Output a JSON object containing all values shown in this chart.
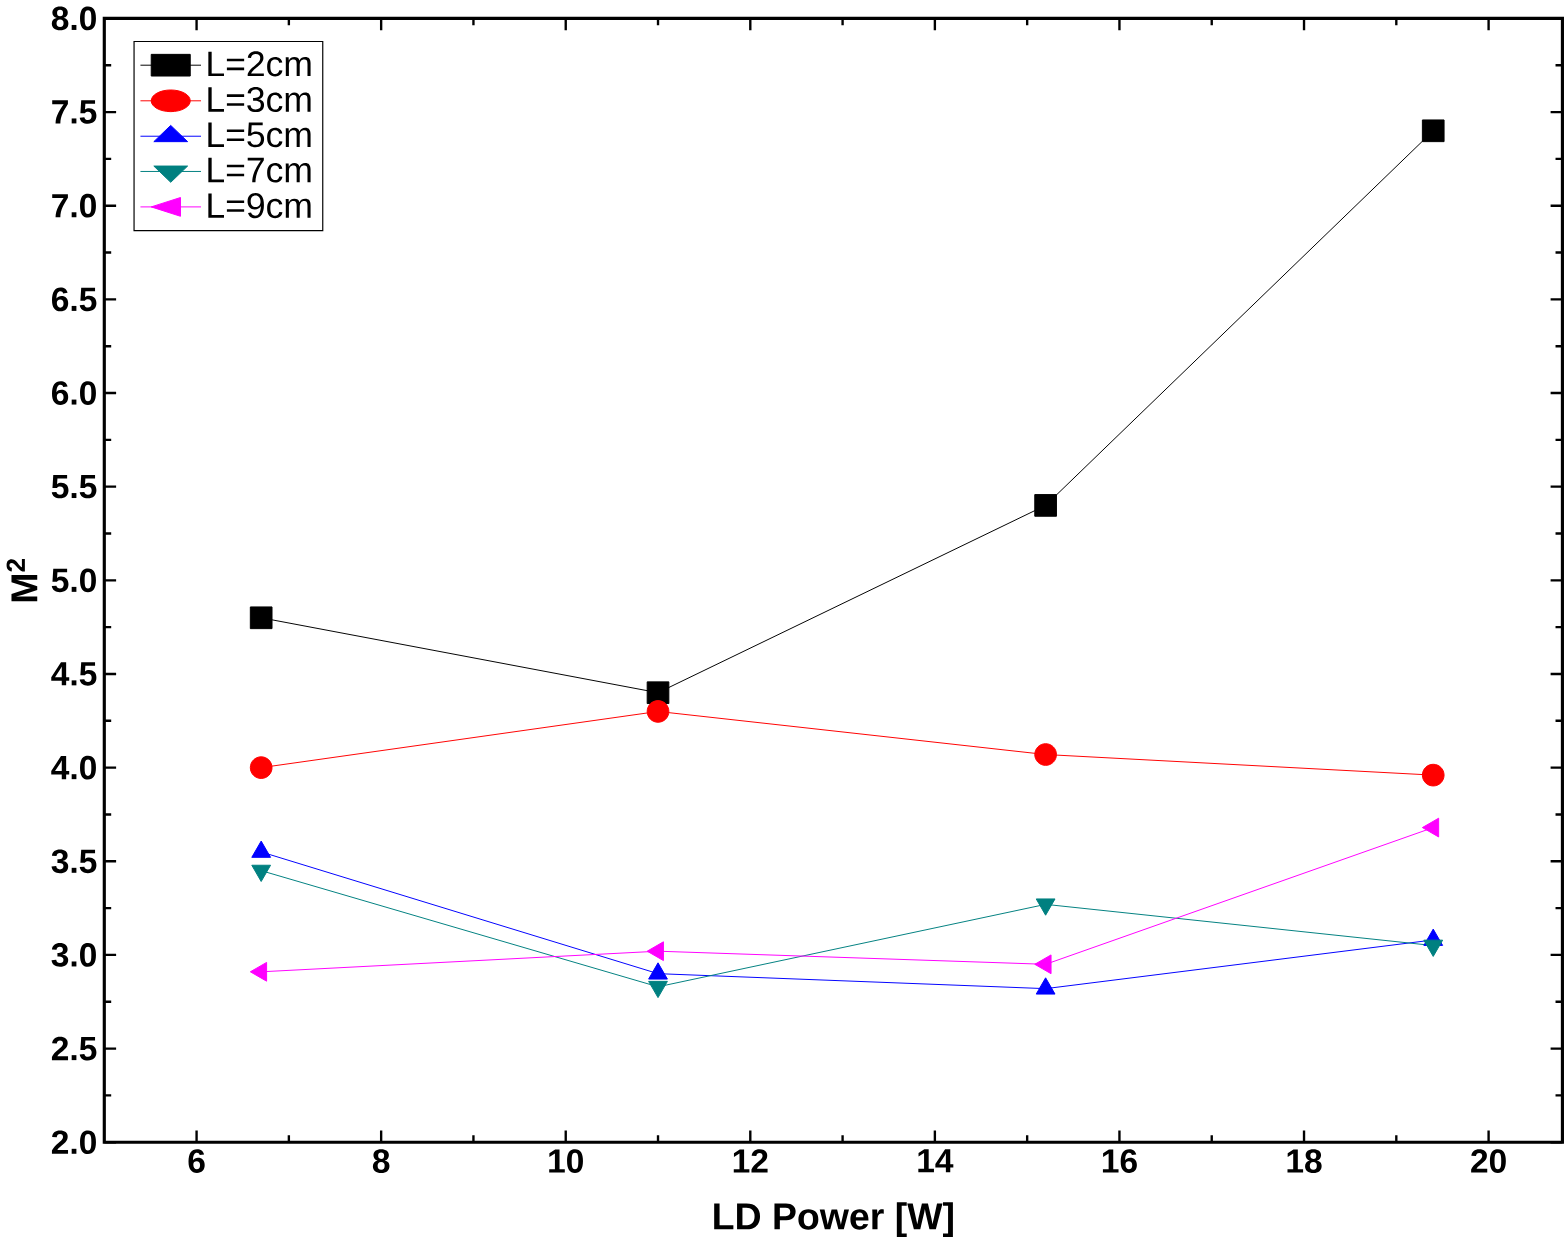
{
  "chart_data": {
    "type": "line",
    "xlabel": "LD Power [W]",
    "ylabel": "M$^{2}$",
    "x": [
      6.7,
      11,
      15.2,
      19.4
    ],
    "series": [
      {
        "name": "L=2cm",
        "color": "#000000",
        "marker": "square",
        "values": [
          4.8,
          4.4,
          5.4,
          7.4
        ]
      },
      {
        "name": "L=3cm",
        "color": "#ff0000",
        "marker": "circle",
        "values": [
          4.0,
          4.3,
          4.07,
          3.96
        ]
      },
      {
        "name": "L=5cm",
        "color": "#0000ff",
        "marker": "triangle",
        "values": [
          3.55,
          2.9,
          2.82,
          3.08
        ]
      },
      {
        "name": "L=7cm",
        "color": "#008080",
        "marker": "triangle down",
        "values": [
          3.45,
          2.83,
          3.27,
          3.05
        ]
      },
      {
        "name": "L=9cm",
        "color": "#ff00ff",
        "marker": "triangle left",
        "values": [
          2.91,
          3.02,
          2.95,
          3.68
        ]
      }
    ],
    "xlim": [
      5,
      20.8
    ],
    "xticks": [
      6,
      8,
      10,
      12,
      14,
      16,
      18,
      20
    ],
    "ylim": [
      2,
      8
    ],
    "yticks": [
      {
        "value": 2,
        "label": "2.0"
      },
      {
        "value": 2.5,
        "label": "2.5"
      },
      {
        "value": 3,
        "label": "3.0"
      },
      {
        "value": 3.5,
        "label": "3.5"
      },
      {
        "value": 4,
        "label": "4.0"
      },
      {
        "value": 4.5,
        "label": "4.5"
      },
      {
        "value": 5,
        "label": "5.0"
      },
      {
        "value": 5.5,
        "label": "5.5"
      },
      {
        "value": 6,
        "label": "6.0"
      },
      {
        "value": 6.5,
        "label": "6.5"
      },
      {
        "value": 7,
        "label": "7.0"
      },
      {
        "value": 7.5,
        "label": "7.5"
      },
      {
        "value": 8,
        "label": "8.0"
      }
    ],
    "grid": false,
    "legend": "top left",
    "line_style": "solid"
  }
}
